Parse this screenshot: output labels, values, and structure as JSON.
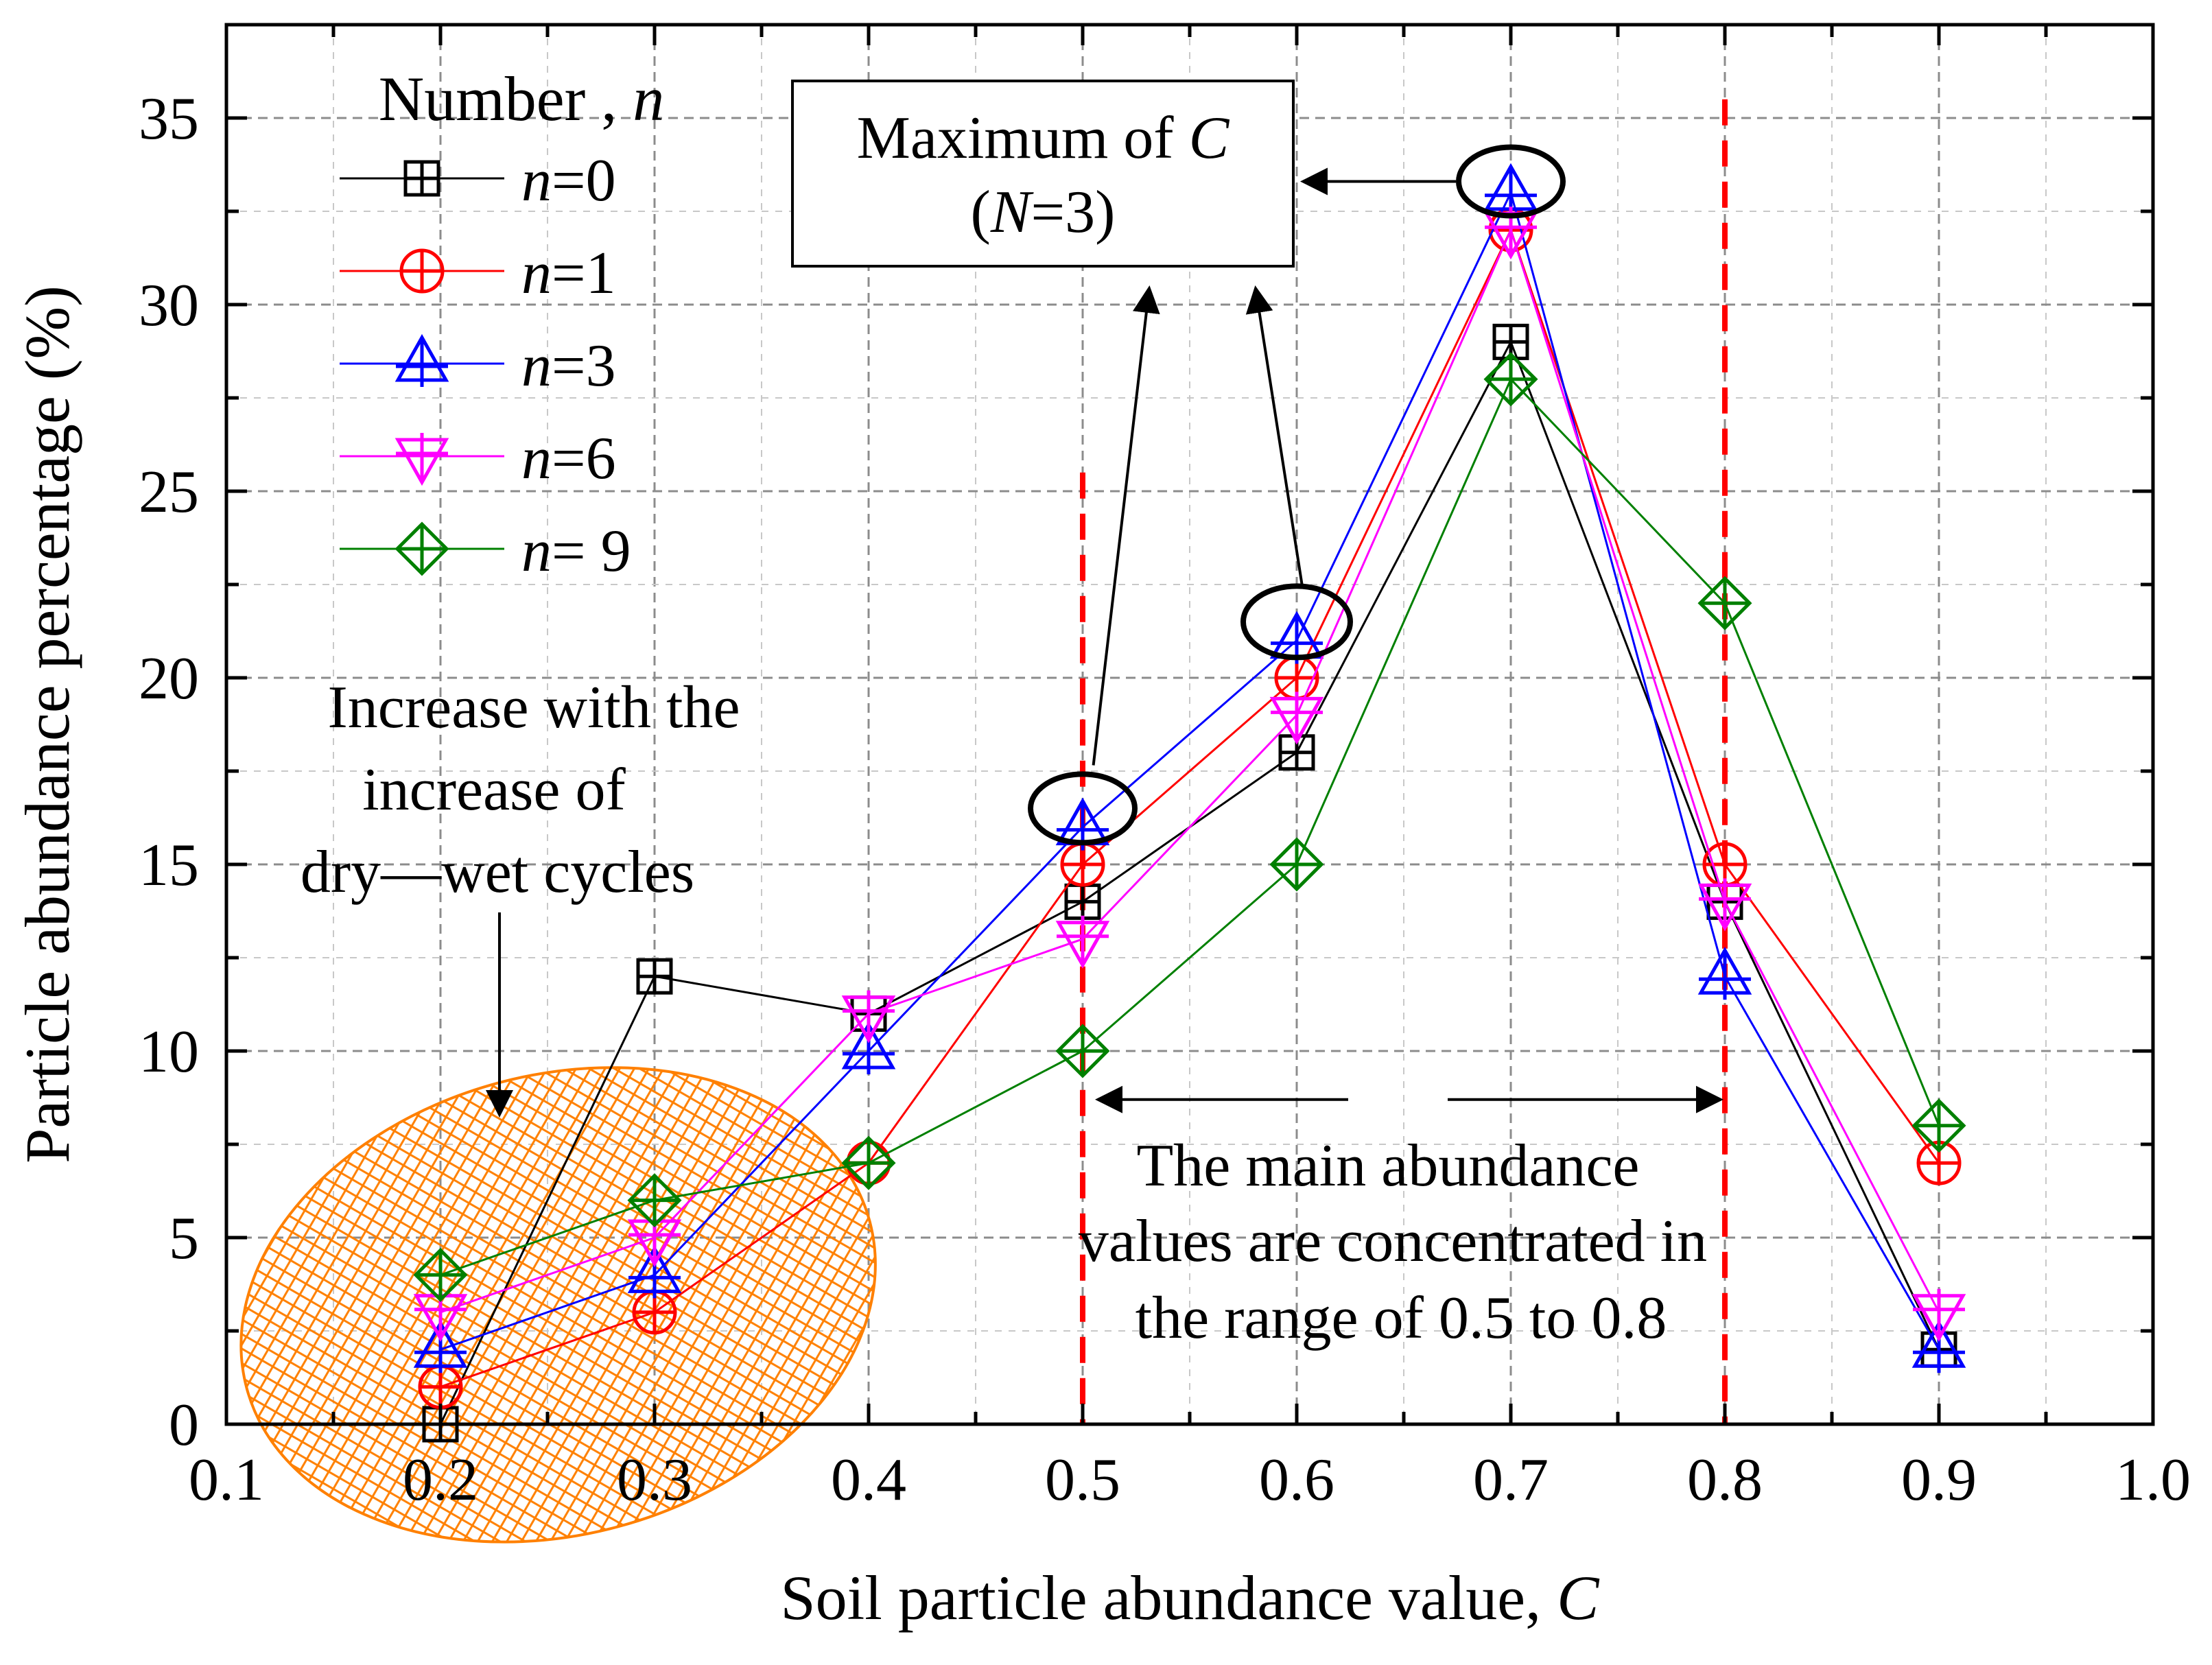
{
  "chart_data": {
    "type": "line",
    "xlabel": "Soil particle abundance value, C",
    "ylabel": "Particle abundance percentage (%)",
    "xlim": [
      0.1,
      1.0
    ],
    "ylim": [
      0,
      37.5
    ],
    "x_ticks": [
      "0.1",
      "0.2",
      "0.3",
      "0.4",
      "0.5",
      "0.6",
      "0.7",
      "0.8",
      "0.9",
      "1.0"
    ],
    "y_ticks": [
      "0",
      "5",
      "10",
      "15",
      "20",
      "25",
      "30",
      "35"
    ],
    "grid": true,
    "legend": {
      "title": "Number , n",
      "placement": "top-left"
    },
    "x": [
      0.2,
      0.3,
      0.4,
      0.5,
      0.6,
      0.7,
      0.8,
      0.9
    ],
    "series": [
      {
        "name": "n=0",
        "color": "#000000",
        "marker": "square-plus",
        "values": [
          0,
          12,
          11,
          14,
          18,
          29,
          14,
          2
        ]
      },
      {
        "name": "n=1",
        "color": "#ff0000",
        "marker": "circle-plus",
        "values": [
          1,
          3,
          7,
          15,
          20,
          32,
          15,
          7
        ]
      },
      {
        "name": "n=3",
        "color": "#0000ff",
        "marker": "triangle-up-plus",
        "values": [
          2,
          4,
          10,
          16,
          21,
          33,
          12,
          2
        ]
      },
      {
        "name": "n=6",
        "color": "#ff00ff",
        "marker": "triangle-down-plus",
        "values": [
          3,
          5,
          11,
          13,
          19,
          32,
          14,
          3
        ]
      },
      {
        "name": "n= 9",
        "color": "#008000",
        "marker": "diamond-plus",
        "values": [
          4,
          6,
          7,
          10,
          15,
          28,
          22,
          8
        ]
      }
    ],
    "reference_lines": [
      {
        "axis": "x",
        "value": 0.5,
        "color": "#ff0000",
        "style": "dashed"
      },
      {
        "axis": "x",
        "value": 0.8,
        "color": "#ff0000",
        "style": "dashed"
      }
    ],
    "annotations": {
      "maximum_box": [
        "Maximum of C",
        "(N=3)"
      ],
      "increase_note": [
        "Increase with the",
        "increase of",
        "dry—wet cycles"
      ],
      "range_note": [
        "The main abundance",
        "values are concentrated in",
        "the range of 0.5 to 0.8"
      ]
    },
    "highlight_color": "#ff8000"
  }
}
